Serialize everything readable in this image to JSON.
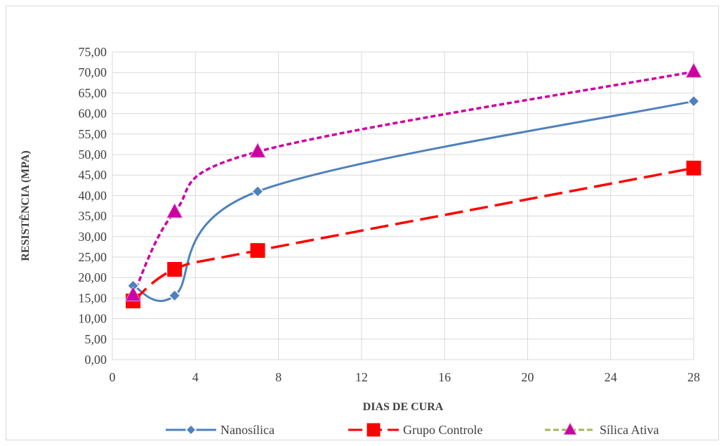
{
  "chart_data": {
    "type": "line",
    "xlabel": "DIAS DE CURA",
    "ylabel": "RESISTÊNCIA (MPA)",
    "xlim": [
      0,
      28
    ],
    "ylim": [
      0,
      75
    ],
    "x_ticks": [
      0,
      4,
      8,
      12,
      16,
      20,
      24,
      28
    ],
    "y_ticks": [
      "0,00",
      "5,00",
      "10,00",
      "15,00",
      "20,00",
      "25,00",
      "30,00",
      "35,00",
      "40,00",
      "45,00",
      "50,00",
      "55,00",
      "60,00",
      "65,00",
      "70,00",
      "75,00"
    ],
    "grid": true,
    "legend_position": "bottom",
    "series": [
      {
        "name": "Nanosílica",
        "x": [
          1,
          3,
          7,
          28
        ],
        "y": [
          18.0,
          15.6,
          41.0,
          63.0
        ],
        "color": "#4f81bd",
        "marker": "diamond",
        "line": "solid",
        "smooth": true
      },
      {
        "name": "Grupo Controle",
        "x": [
          1,
          3,
          7,
          28
        ],
        "y": [
          14.3,
          22.0,
          26.6,
          46.7
        ],
        "color": "#ff0000",
        "marker": "square",
        "line": "long-dash",
        "smooth": true
      },
      {
        "name": "Sílica Ativa",
        "x": [
          1,
          3,
          7,
          28
        ],
        "y": [
          15.7,
          36.0,
          50.7,
          70.2
        ],
        "color": "#cc00a0",
        "marker": "triangle",
        "line": "dotted",
        "smooth": true,
        "legend_line_color": "#9bbb59"
      }
    ]
  }
}
